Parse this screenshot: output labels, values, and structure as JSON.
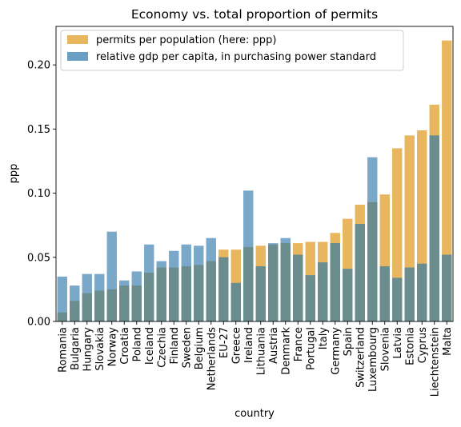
{
  "chart_data": {
    "type": "bar",
    "title": "Economy vs. total proportion of permits",
    "xlabel": "country",
    "ylabel": "ppp",
    "ylim": [
      0,
      0.23
    ],
    "yticks": [
      0.0,
      0.05,
      0.1,
      0.15,
      0.2
    ],
    "ytick_labels": [
      "0.00",
      "0.05",
      "0.10",
      "0.15",
      "0.20"
    ],
    "legend_position": "top-left",
    "categories": [
      "Romania",
      "Bulgaria",
      "Hungary",
      "Slovakia",
      "Norway",
      "Croatia",
      "Poland",
      "Iceland",
      "Czechia",
      "Finland",
      "Sweden",
      "Belgium",
      "Netherlands",
      "EU-27",
      "Greece",
      "Ireland",
      "Lithuania",
      "Austria",
      "Denmark",
      "France",
      "Portugal",
      "Italy",
      "Germany",
      "Spain",
      "Switzerland",
      "Luxembourg",
      "Slovenia",
      "Latvia",
      "Estonia",
      "Cyprus",
      "Liechtenstein",
      "Malta"
    ],
    "series": [
      {
        "name": "permits per population (here: ppp)",
        "color": "#e8b65e",
        "values": [
          0.007,
          0.016,
          0.022,
          0.024,
          0.025,
          0.028,
          0.028,
          0.038,
          0.042,
          0.042,
          0.043,
          0.044,
          0.047,
          0.056,
          0.056,
          0.058,
          0.059,
          0.06,
          0.061,
          0.061,
          0.062,
          0.062,
          0.069,
          0.08,
          0.091,
          0.093,
          0.099,
          0.135,
          0.145,
          0.149,
          0.169,
          0.219
        ]
      },
      {
        "name": "relative gdp per capita, in purchasing power standard",
        "color": "#6a9ec2",
        "values": [
          0.035,
          0.028,
          0.037,
          0.037,
          0.07,
          0.032,
          0.039,
          0.06,
          0.047,
          0.055,
          0.06,
          0.059,
          0.065,
          0.05,
          0.03,
          0.102,
          0.043,
          0.061,
          0.065,
          0.052,
          0.036,
          0.046,
          0.061,
          0.041,
          0.076,
          0.128,
          0.043,
          0.034,
          0.042,
          0.045,
          0.145,
          0.052
        ]
      }
    ]
  }
}
